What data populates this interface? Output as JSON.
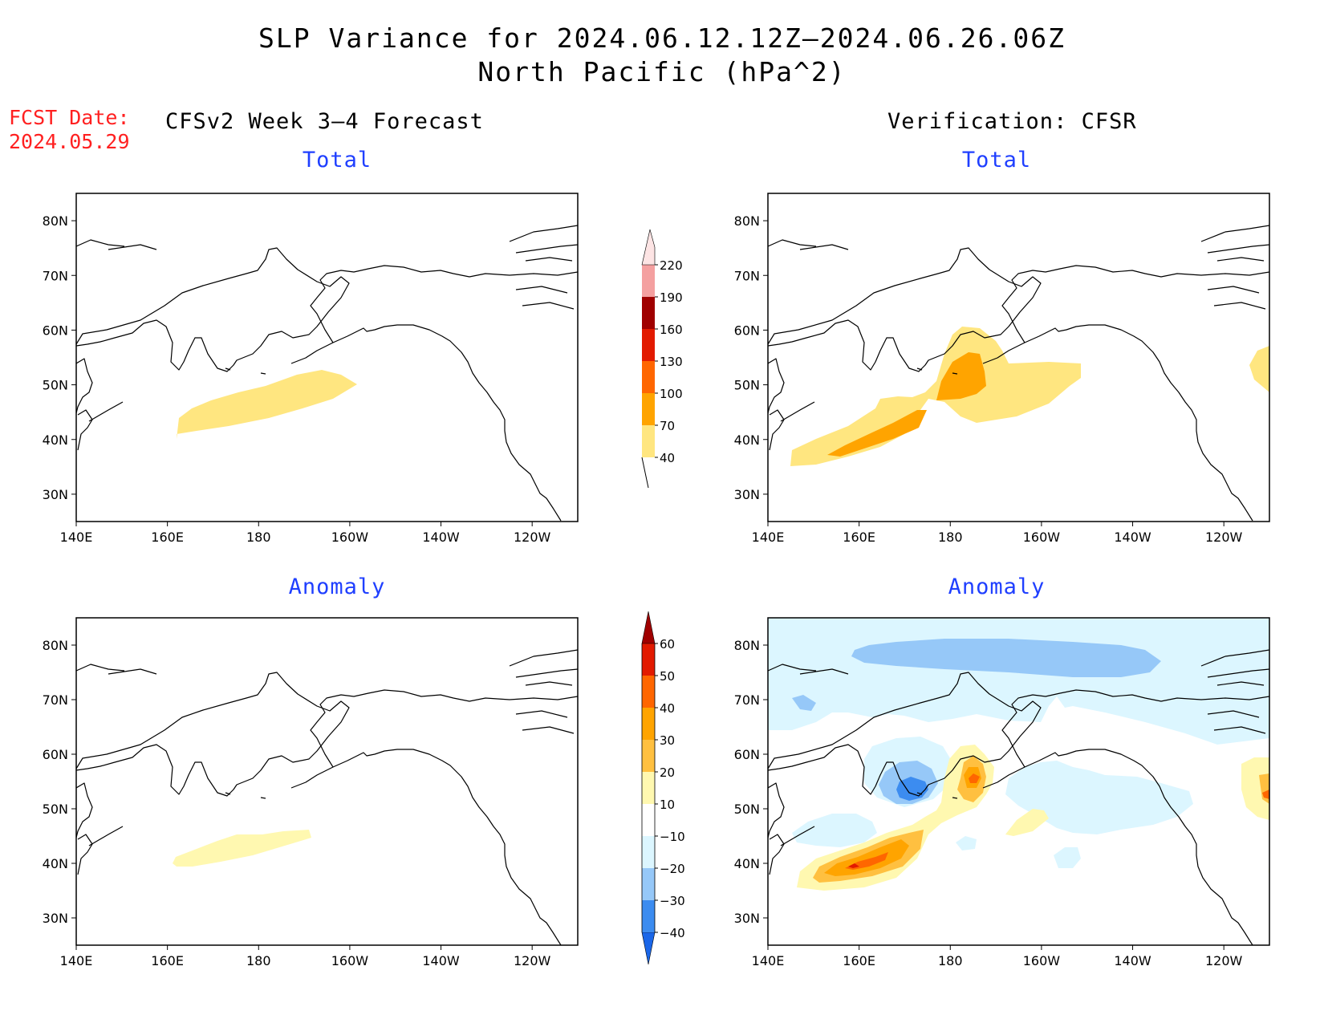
{
  "title": {
    "line1": "SLP Variance for 2024.06.12.12Z–2024.06.26.06Z",
    "line2": "North Pacific (hPa^2)"
  },
  "fcst_date": {
    "label": "FCST Date:",
    "value": "2024.05.29"
  },
  "columns": {
    "left": "CFSv2 Week 3–4 Forecast",
    "right": "Verification: CFSR"
  },
  "panels": {
    "total": "Total",
    "anomaly": "Anomaly"
  },
  "map": {
    "lon_range": [
      140,
      250
    ],
    "lat_range": [
      25,
      85
    ],
    "lon_ticks": [
      "140E",
      "160E",
      "180",
      "160W",
      "140W",
      "120W"
    ],
    "lat_ticks": [
      "30N",
      "40N",
      "50N",
      "60N",
      "70N",
      "80N"
    ]
  },
  "colorbars": {
    "total": {
      "labels": [
        "40",
        "70",
        "100",
        "130",
        "160",
        "190",
        "220"
      ],
      "colors": [
        "#ffe680",
        "#ffa400",
        "#ff6600",
        "#e21a00",
        "#a00000",
        "#f4a0a0",
        "#fde4e4"
      ]
    },
    "anomaly": {
      "labels": [
        "−40",
        "−30",
        "−20",
        "−10",
        "10",
        "20",
        "30",
        "40",
        "50",
        "60"
      ],
      "colors": [
        "#1a66e8",
        "#3c8cf0",
        "#96c8f8",
        "#dcf6ff",
        "#ffffff",
        "#fff8b0",
        "#ffc040",
        "#ffa400",
        "#ff6600",
        "#e21a00",
        "#a00000"
      ]
    }
  },
  "colors": {
    "light_yellow": "#fff8b0",
    "yellow": "#ffe680",
    "orange": "#ffa400",
    "dark_orange": "#ff6600",
    "red": "#e21a00",
    "light_blue": "#dcf6ff",
    "mid_blue": "#96c8f8",
    "blue": "#3c8cf0"
  }
}
